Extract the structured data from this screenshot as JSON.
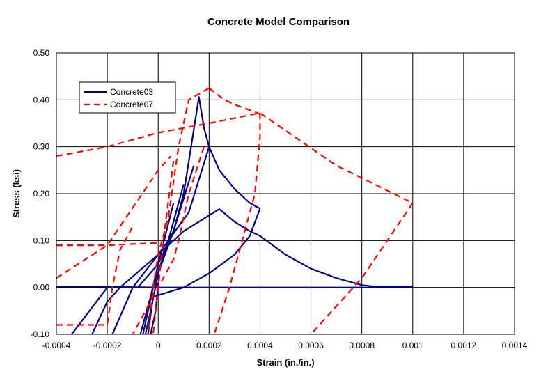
{
  "chart_data": {
    "type": "line",
    "title": "Concrete Model Comparison",
    "xlabel": "Strain (in./in.)",
    "ylabel": "Stress (ksi)",
    "xlim": [
      -0.0004,
      0.0014
    ],
    "ylim": [
      -0.1,
      0.5
    ],
    "x_ticks": [
      "-0.0004",
      "-0.0002",
      "0",
      "0.0002",
      "0.0004",
      "0.0006",
      "0.0008",
      "0.001",
      "0.0012",
      "0.0014"
    ],
    "y_ticks": [
      "-0.10",
      "0.00",
      "0.10",
      "0.20",
      "0.30",
      "0.40",
      "0.50"
    ],
    "grid": true,
    "legend_position": "top-left",
    "series": [
      {
        "name": "Concrete03",
        "color": "#000080",
        "style": "solid",
        "segments": [
          [
            [
              -0.00034,
              -0.1
            ],
            [
              -0.0002,
              0.0
            ],
            [
              -8e-05,
              0.0
            ],
            [
              0.0,
              0.05
            ],
            [
              6e-05,
              0.12
            ],
            [
              0.0001,
              0.2
            ],
            [
              0.00016,
              0.406
            ],
            [
              0.00018,
              0.34
            ],
            [
              0.0002,
              0.3
            ],
            [
              0.00024,
              0.25
            ],
            [
              0.0003,
              0.21
            ],
            [
              0.00036,
              0.18
            ],
            [
              0.0004,
              0.168
            ]
          ],
          [
            [
              0.0004,
              0.168
            ],
            [
              0.00036,
              0.11
            ],
            [
              0.0003,
              0.07
            ],
            [
              0.0002,
              0.03
            ],
            [
              0.0001,
              0.0
            ],
            [
              -2e-05,
              -0.02
            ],
            [
              -4e-05,
              -0.1
            ]
          ],
          [
            [
              -0.00026,
              -0.1
            ],
            [
              -0.0002,
              -0.03
            ],
            [
              -0.00015,
              0.0
            ],
            [
              0.0,
              0.07
            ],
            [
              0.0001,
              0.12
            ],
            [
              0.00024,
              0.167
            ],
            [
              0.0003,
              0.14
            ],
            [
              0.00036,
              0.12
            ],
            [
              0.0004,
              0.11
            ],
            [
              0.0005,
              0.07
            ],
            [
              0.0006,
              0.04
            ],
            [
              0.0007,
              0.02
            ],
            [
              0.0008,
              0.005
            ],
            [
              0.00085,
              0.002
            ],
            [
              0.001,
              0.002
            ]
          ],
          [
            [
              0.0002,
              0.3
            ],
            [
              0.00012,
              0.16
            ],
            [
              0.0,
              0.07
            ],
            [
              -0.0001,
              0.0
            ],
            [
              -0.00018,
              -0.1
            ]
          ],
          [
            [
              0.00014,
              0.26
            ],
            [
              6e-05,
              0.12
            ],
            [
              0.0,
              0.03
            ],
            [
              -3e-05,
              -0.05
            ],
            [
              -5e-05,
              -0.1
            ]
          ],
          [
            [
              0.0001,
              0.22
            ],
            [
              4e-05,
              0.1
            ],
            [
              -2e-05,
              0.0
            ],
            [
              -6e-05,
              -0.1
            ]
          ],
          [
            [
              6e-05,
              0.18
            ],
            [
              0.0,
              0.05
            ],
            [
              -3e-05,
              -0.02
            ],
            [
              -7e-05,
              -0.1
            ]
          ],
          [
            [
              0.0,
              0.01
            ],
            [
              -1e-05,
              -0.05
            ],
            [
              -3e-05,
              -0.1
            ]
          ],
          [
            [
              -0.0004,
              0.002
            ],
            [
              -0.00028,
              0.002
            ],
            [
              0.0,
              0.0
            ],
            [
              0.0004,
              0.0
            ],
            [
              0.0008,
              0.0
            ],
            [
              0.001,
              0.0
            ]
          ]
        ]
      },
      {
        "name": "Concrete07",
        "color": "#FF0000",
        "style": "dashed",
        "segments": [
          [
            [
              -0.0004,
              0.28
            ],
            [
              -0.0002,
              0.3
            ],
            [
              0.0,
              0.33
            ],
            [
              0.0002,
              0.35
            ],
            [
              0.0004,
              0.372
            ],
            [
              0.0007,
              0.26
            ],
            [
              0.001,
              0.18
            ]
          ],
          [
            [
              0.001,
              0.18
            ],
            [
              0.0008,
              0.02
            ],
            [
              0.0006,
              -0.1
            ]
          ],
          [
            [
              0.0004,
              0.372
            ],
            [
              0.0004,
              0.32
            ],
            [
              0.00038,
              0.2
            ],
            [
              0.00033,
              0.1
            ],
            [
              0.00028,
              0.0
            ],
            [
              0.00022,
              -0.1
            ]
          ],
          [
            [
              0.0002,
              0.425
            ],
            [
              0.00026,
              0.4
            ],
            [
              0.0003,
              0.39
            ],
            [
              0.0004,
              0.37
            ]
          ],
          [
            [
              0.0002,
              0.425
            ],
            [
              0.00012,
              0.4
            ],
            [
              8e-05,
              0.3
            ],
            [
              4e-05,
              0.15
            ],
            [
              0.0,
              0.07
            ],
            [
              -2e-05,
              0.0
            ],
            [
              -4e-05,
              -0.1
            ]
          ],
          [
            [
              6e-05,
              0.27
            ],
            [
              2e-05,
              0.1
            ],
            [
              0.0,
              0.0
            ],
            [
              -2e-05,
              -0.1
            ]
          ],
          [
            [
              0.00018,
              0.3
            ],
            [
              0.00012,
              0.2
            ],
            [
              8e-05,
              0.1
            ],
            [
              6e-05,
              0.06
            ],
            [
              0.0,
              0.0
            ],
            [
              -5e-05,
              -0.05
            ],
            [
              -0.0001,
              -0.1
            ]
          ],
          [
            [
              -0.0004,
              0.02
            ],
            [
              -0.0002,
              0.09
            ],
            [
              0.0,
              0.25
            ],
            [
              5e-05,
              0.28
            ]
          ],
          [
            [
              -0.0004,
              0.09
            ],
            [
              -0.0002,
              0.09
            ],
            [
              0.0,
              0.095
            ]
          ],
          [
            [
              -0.0004,
              -0.08
            ],
            [
              -0.0002,
              -0.08
            ],
            [
              -0.00018,
              0.0
            ],
            [
              -0.00015,
              0.08
            ],
            [
              -0.0001,
              0.13
            ]
          ]
        ]
      }
    ]
  }
}
